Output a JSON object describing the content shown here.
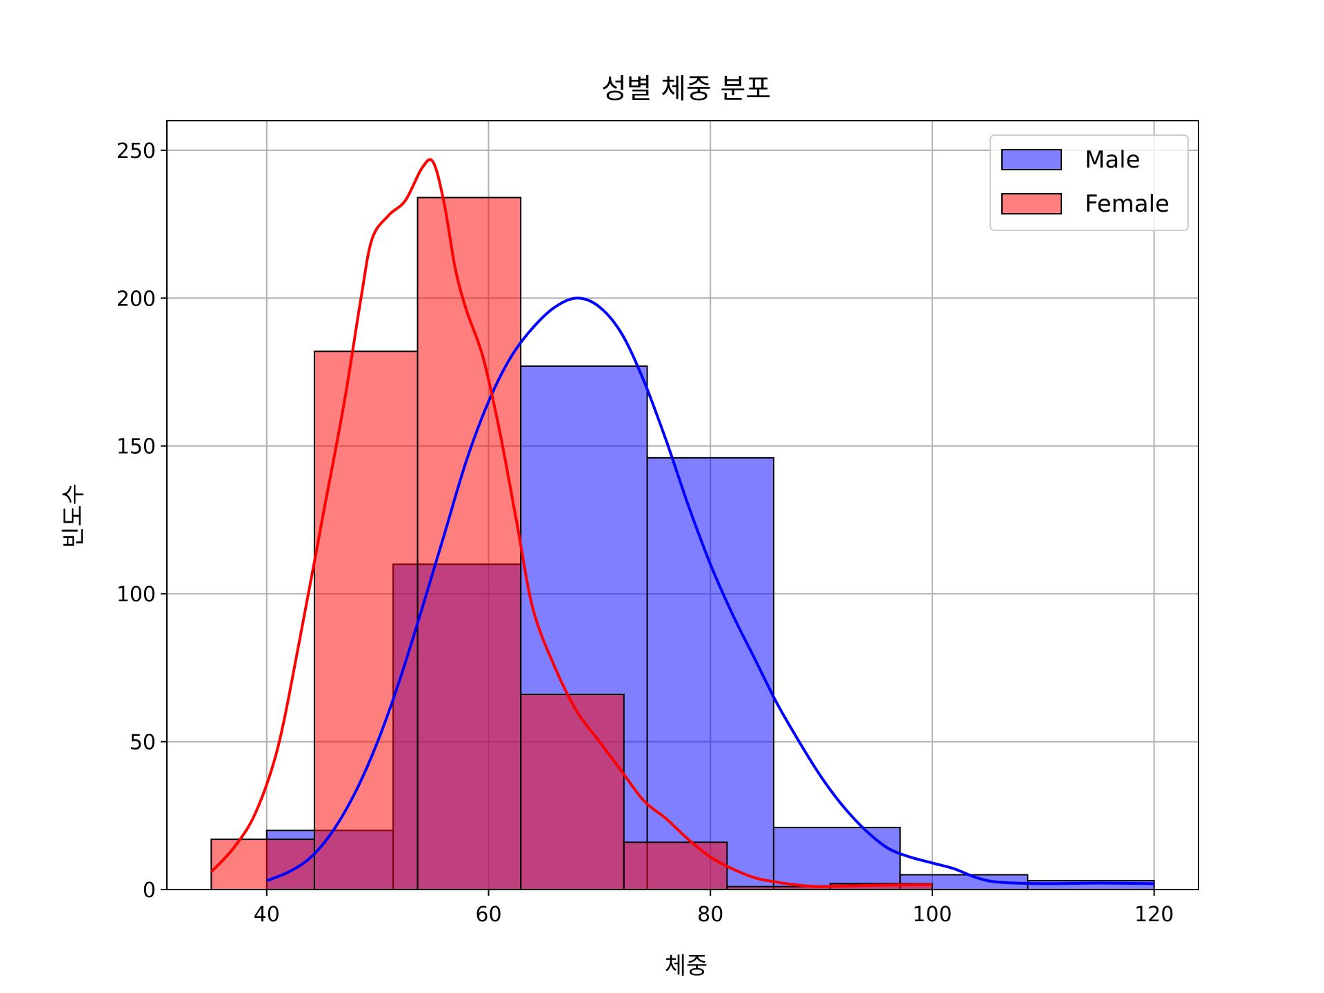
{
  "chart_data": {
    "type": "histogram",
    "title": "성별 체중 분포",
    "xlabel": "체중",
    "ylabel": "빈도수",
    "xlim": [
      31,
      124
    ],
    "ylim": [
      0,
      260
    ],
    "xticks": [
      40,
      60,
      80,
      100,
      120
    ],
    "yticks": [
      0,
      50,
      100,
      150,
      200,
      250
    ],
    "grid": true,
    "legend_position": "top-right",
    "series": [
      {
        "name": "Male",
        "color": "#0000ff",
        "bins": [
          {
            "x0": 40.0,
            "x1": 51.4,
            "count": 20
          },
          {
            "x0": 51.4,
            "x1": 62.9,
            "count": 110
          },
          {
            "x0": 62.9,
            "x1": 74.3,
            "count": 177
          },
          {
            "x0": 74.3,
            "x1": 85.7,
            "count": 146
          },
          {
            "x0": 85.7,
            "x1": 97.1,
            "count": 21
          },
          {
            "x0": 97.1,
            "x1": 108.6,
            "count": 5
          },
          {
            "x0": 108.6,
            "x1": 120.0,
            "count": 3
          }
        ],
        "kde": [
          [
            40,
            3
          ],
          [
            42,
            6
          ],
          [
            44,
            11
          ],
          [
            46,
            20
          ],
          [
            48,
            33
          ],
          [
            50,
            50
          ],
          [
            52,
            71
          ],
          [
            54,
            95
          ],
          [
            56,
            120
          ],
          [
            58,
            145
          ],
          [
            60,
            165
          ],
          [
            62,
            180
          ],
          [
            64,
            190
          ],
          [
            66,
            197
          ],
          [
            68,
            200
          ],
          [
            70,
            197
          ],
          [
            72,
            188
          ],
          [
            74,
            172
          ],
          [
            76,
            152
          ],
          [
            78,
            130
          ],
          [
            80,
            110
          ],
          [
            82,
            93
          ],
          [
            84,
            78
          ],
          [
            86,
            63
          ],
          [
            88,
            50
          ],
          [
            90,
            38
          ],
          [
            92,
            28
          ],
          [
            94,
            20
          ],
          [
            96,
            14
          ],
          [
            98,
            11
          ],
          [
            100,
            9
          ],
          [
            102,
            7
          ],
          [
            104,
            4
          ],
          [
            106,
            2.5
          ],
          [
            110,
            2
          ],
          [
            115,
            2.2
          ],
          [
            120,
            2
          ]
        ]
      },
      {
        "name": "Female",
        "color": "#ff0000",
        "bins": [
          {
            "x0": 35.0,
            "x1": 44.3,
            "count": 17
          },
          {
            "x0": 44.3,
            "x1": 53.6,
            "count": 182
          },
          {
            "x0": 53.6,
            "x1": 62.9,
            "count": 234
          },
          {
            "x0": 62.9,
            "x1": 72.2,
            "count": 66
          },
          {
            "x0": 72.2,
            "x1": 81.5,
            "count": 16
          },
          {
            "x0": 81.5,
            "x1": 90.8,
            "count": 1
          },
          {
            "x0": 90.8,
            "x1": 100.0,
            "count": 2
          }
        ],
        "kde": [
          [
            35,
            6
          ],
          [
            37,
            14
          ],
          [
            39,
            26
          ],
          [
            41,
            48
          ],
          [
            43,
            85
          ],
          [
            45,
            125
          ],
          [
            47,
            165
          ],
          [
            48.5,
            200
          ],
          [
            49.5,
            220
          ],
          [
            51,
            228
          ],
          [
            52.5,
            233
          ],
          [
            54,
            244
          ],
          [
            55,
            246
          ],
          [
            56,
            232
          ],
          [
            57,
            210
          ],
          [
            58,
            196
          ],
          [
            59.5,
            180
          ],
          [
            61,
            155
          ],
          [
            62.5,
            125
          ],
          [
            64,
            95
          ],
          [
            66,
            75
          ],
          [
            68,
            60
          ],
          [
            70,
            50
          ],
          [
            72,
            40
          ],
          [
            74,
            30
          ],
          [
            76,
            24
          ],
          [
            78,
            17
          ],
          [
            80,
            11
          ],
          [
            82,
            7
          ],
          [
            84,
            4
          ],
          [
            86,
            2.5
          ],
          [
            88,
            1.5
          ],
          [
            90,
            1
          ],
          [
            95,
            1.5
          ],
          [
            100,
            1.7
          ]
        ]
      }
    ]
  }
}
